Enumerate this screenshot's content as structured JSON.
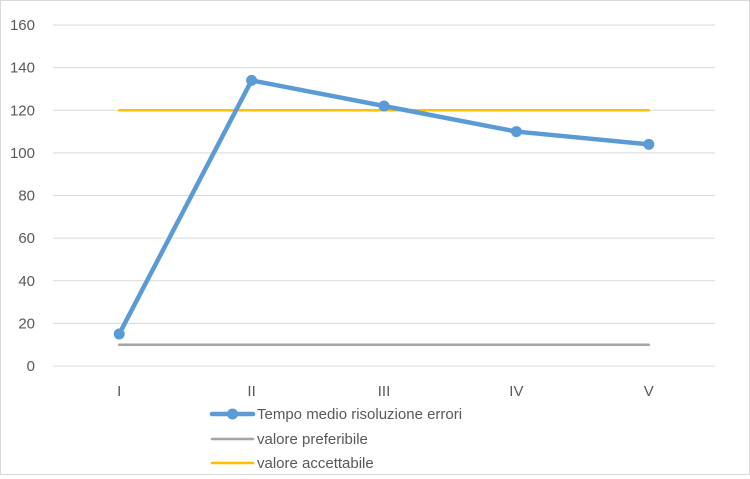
{
  "chart_data": {
    "type": "line",
    "categories": [
      "I",
      "II",
      "III",
      "IV",
      "V"
    ],
    "ylim": [
      0,
      160
    ],
    "yticks": [
      0,
      20,
      40,
      60,
      80,
      100,
      120,
      140,
      160
    ],
    "grid": true,
    "legend_position": "bottom",
    "series": [
      {
        "name": "Tempo medio risoluzione errori",
        "values": [
          15,
          134,
          122,
          110,
          104
        ],
        "color": "#5b9bd5",
        "markers": true
      },
      {
        "name": "valore preferibile",
        "values": [
          10,
          10,
          10,
          10,
          10
        ],
        "color": "#a5a5a5",
        "markers": false
      },
      {
        "name": "valore accettabile",
        "values": [
          120,
          120,
          120,
          120,
          120
        ],
        "color": "#ffc000",
        "markers": false
      }
    ]
  }
}
